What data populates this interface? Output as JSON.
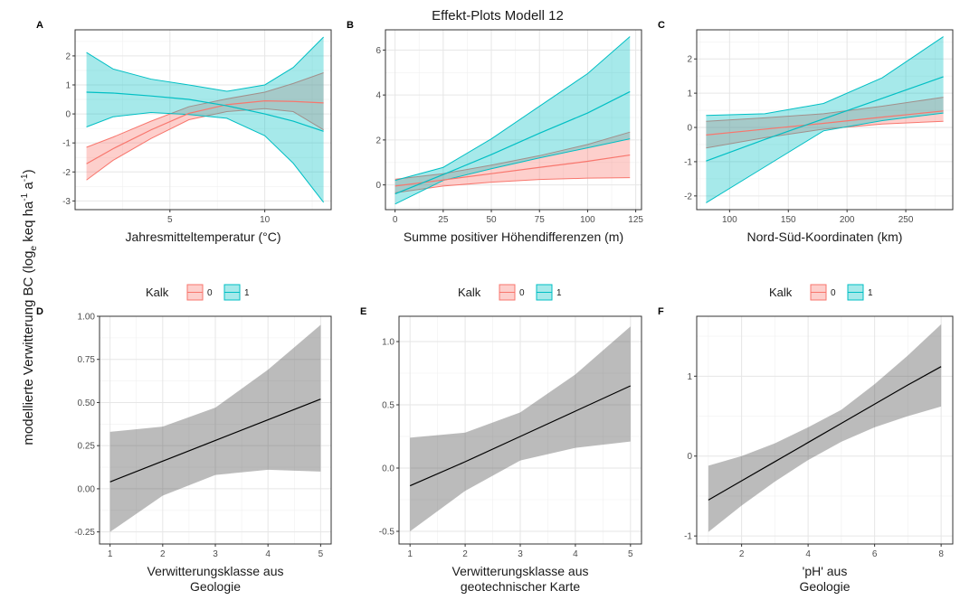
{
  "title": "Effekt-Plots Modell 12",
  "ylabel": "modellierte Verwitterung BC (log",
  "ylabel_sub": "e",
  "ylabel_rest": " keq ha",
  "ylabel_exp1": "-1",
  "ylabel_mid": " a",
  "ylabel_exp2": "-1",
  "ylabel_end": ")",
  "legend": {
    "title": "Kalk",
    "labels": [
      "0",
      "1"
    ],
    "colors": [
      "#F8766D",
      "#00BFC4"
    ]
  },
  "chart_data": [
    {
      "panel": "A",
      "type": "line",
      "xlabel": "Jahresmitteltemperatur (°C)",
      "xlim": [
        0,
        13.5
      ],
      "ylim": [
        -3.3,
        2.9
      ],
      "xticks": [
        5,
        10
      ],
      "yticks": [
        -3,
        -2,
        -1,
        0,
        1,
        2
      ],
      "series": [
        {
          "name": "0",
          "color": "#F8766D",
          "x": [
            0.6,
            2,
            4,
            6,
            8,
            10,
            11.5,
            13.1
          ],
          "y": [
            -1.72,
            -1.2,
            -0.55,
            0.02,
            0.32,
            0.45,
            0.43,
            0.38
          ],
          "lower": [
            -2.28,
            -1.6,
            -0.85,
            -0.2,
            0.08,
            0.18,
            0.08,
            -0.55
          ],
          "upper": [
            -1.15,
            -0.8,
            -0.25,
            0.25,
            0.52,
            0.75,
            1.05,
            1.42
          ]
        },
        {
          "name": "1",
          "color": "#00BFC4",
          "x": [
            0.6,
            2,
            4,
            6,
            8,
            10,
            11.5,
            13.1
          ],
          "y": [
            0.75,
            0.72,
            0.62,
            0.5,
            0.28,
            0.0,
            -0.25,
            -0.6
          ],
          "lower": [
            -0.45,
            -0.1,
            0.05,
            -0.02,
            -0.15,
            -0.75,
            -1.7,
            -3.05
          ],
          "upper": [
            2.12,
            1.55,
            1.2,
            1.0,
            0.78,
            1.0,
            1.6,
            2.65
          ]
        }
      ]
    },
    {
      "panel": "B",
      "type": "line",
      "xlabel": "Summe positiver Höhendifferenzen (m)",
      "xlim": [
        -5,
        128
      ],
      "ylim": [
        -1.1,
        6.9
      ],
      "xticks": [
        0,
        25,
        50,
        75,
        100,
        125
      ],
      "yticks": [
        0,
        2,
        4,
        6
      ],
      "series": [
        {
          "name": "0",
          "color": "#F8766D",
          "x": [
            0,
            25,
            50,
            75,
            100,
            122
          ],
          "y": [
            -0.05,
            0.22,
            0.5,
            0.78,
            1.05,
            1.33
          ],
          "lower": [
            -0.35,
            -0.05,
            0.12,
            0.24,
            0.3,
            0.32
          ],
          "upper": [
            0.25,
            0.5,
            0.88,
            1.3,
            1.8,
            2.35
          ]
        },
        {
          "name": "1",
          "color": "#00BFC4",
          "x": [
            0,
            25,
            50,
            75,
            100,
            122
          ],
          "y": [
            -0.4,
            0.46,
            1.35,
            2.3,
            3.2,
            4.15
          ],
          "lower": [
            -0.85,
            0.2,
            0.72,
            1.2,
            1.65,
            2.05
          ],
          "upper": [
            0.2,
            0.78,
            2.05,
            3.5,
            4.95,
            6.6
          ]
        }
      ]
    },
    {
      "panel": "C",
      "type": "line",
      "xlabel": "Nord-Süd-Koordinaten (km)",
      "xlim": [
        72,
        290
      ],
      "ylim": [
        -2.4,
        2.85
      ],
      "xticks": [
        100,
        150,
        200,
        250
      ],
      "yticks": [
        -2,
        -1,
        0,
        1,
        2
      ],
      "series": [
        {
          "name": "0",
          "color": "#F8766D",
          "x": [
            80,
            130,
            180,
            230,
            282
          ],
          "y": [
            -0.22,
            -0.05,
            0.12,
            0.3,
            0.48
          ],
          "lower": [
            -0.6,
            -0.3,
            -0.05,
            0.1,
            0.18
          ],
          "upper": [
            0.18,
            0.28,
            0.4,
            0.62,
            0.88
          ]
        },
        {
          "name": "1",
          "color": "#00BFC4",
          "x": [
            80,
            130,
            180,
            230,
            282
          ],
          "y": [
            -0.98,
            -0.35,
            0.25,
            0.85,
            1.48
          ],
          "lower": [
            -2.2,
            -1.15,
            -0.1,
            0.2,
            0.42
          ],
          "upper": [
            0.35,
            0.4,
            0.7,
            1.45,
            2.65
          ]
        }
      ]
    },
    {
      "panel": "D",
      "type": "line",
      "xlabel": "Verwitterungsklasse aus\nGeologie",
      "xlim": [
        0.8,
        5.2
      ],
      "ylim": [
        -0.32,
        1.0
      ],
      "xticks": [
        1,
        2,
        3,
        4,
        5
      ],
      "yticks": [
        -0.25,
        0.0,
        0.25,
        0.5,
        0.75,
        1.0
      ],
      "ytickfmt": 2,
      "series": [
        {
          "name": "",
          "color": "#000000",
          "x": [
            1,
            2,
            3,
            4,
            5
          ],
          "y": [
            0.04,
            0.16,
            0.28,
            0.4,
            0.52
          ],
          "lower": [
            -0.25,
            -0.04,
            0.08,
            0.11,
            0.1
          ],
          "upper": [
            0.33,
            0.36,
            0.47,
            0.69,
            0.95
          ]
        }
      ]
    },
    {
      "panel": "E",
      "type": "line",
      "xlabel": "Verwitterungsklasse aus\ngeotechnischer Karte",
      "xlim": [
        0.8,
        5.2
      ],
      "ylim": [
        -0.6,
        1.2
      ],
      "xticks": [
        1,
        2,
        3,
        4,
        5
      ],
      "yticks": [
        -0.5,
        0.0,
        0.5,
        1.0
      ],
      "ytickfmt": 1,
      "series": [
        {
          "name": "",
          "color": "#000000",
          "x": [
            1,
            2,
            3,
            4,
            5
          ],
          "y": [
            -0.14,
            0.05,
            0.25,
            0.45,
            0.65
          ],
          "lower": [
            -0.5,
            -0.18,
            0.06,
            0.16,
            0.21
          ],
          "upper": [
            0.24,
            0.28,
            0.44,
            0.74,
            1.12
          ]
        }
      ]
    },
    {
      "panel": "F",
      "type": "line",
      "xlabel": "'pH' aus\nGeologie",
      "xlim": [
        0.65,
        8.35
      ],
      "ylim": [
        -1.1,
        1.75
      ],
      "xticks": [
        2,
        4,
        6,
        8
      ],
      "yticks": [
        -1,
        0,
        1
      ],
      "series": [
        {
          "name": "",
          "color": "#000000",
          "x": [
            1,
            2,
            3,
            4,
            5,
            6,
            7,
            8
          ],
          "y": [
            -0.55,
            -0.31,
            -0.07,
            0.17,
            0.41,
            0.65,
            0.89,
            1.12
          ],
          "lower": [
            -0.95,
            -0.62,
            -0.32,
            -0.05,
            0.18,
            0.36,
            0.5,
            0.62
          ],
          "upper": [
            -0.12,
            0.0,
            0.16,
            0.36,
            0.58,
            0.9,
            1.26,
            1.65
          ]
        }
      ]
    }
  ]
}
